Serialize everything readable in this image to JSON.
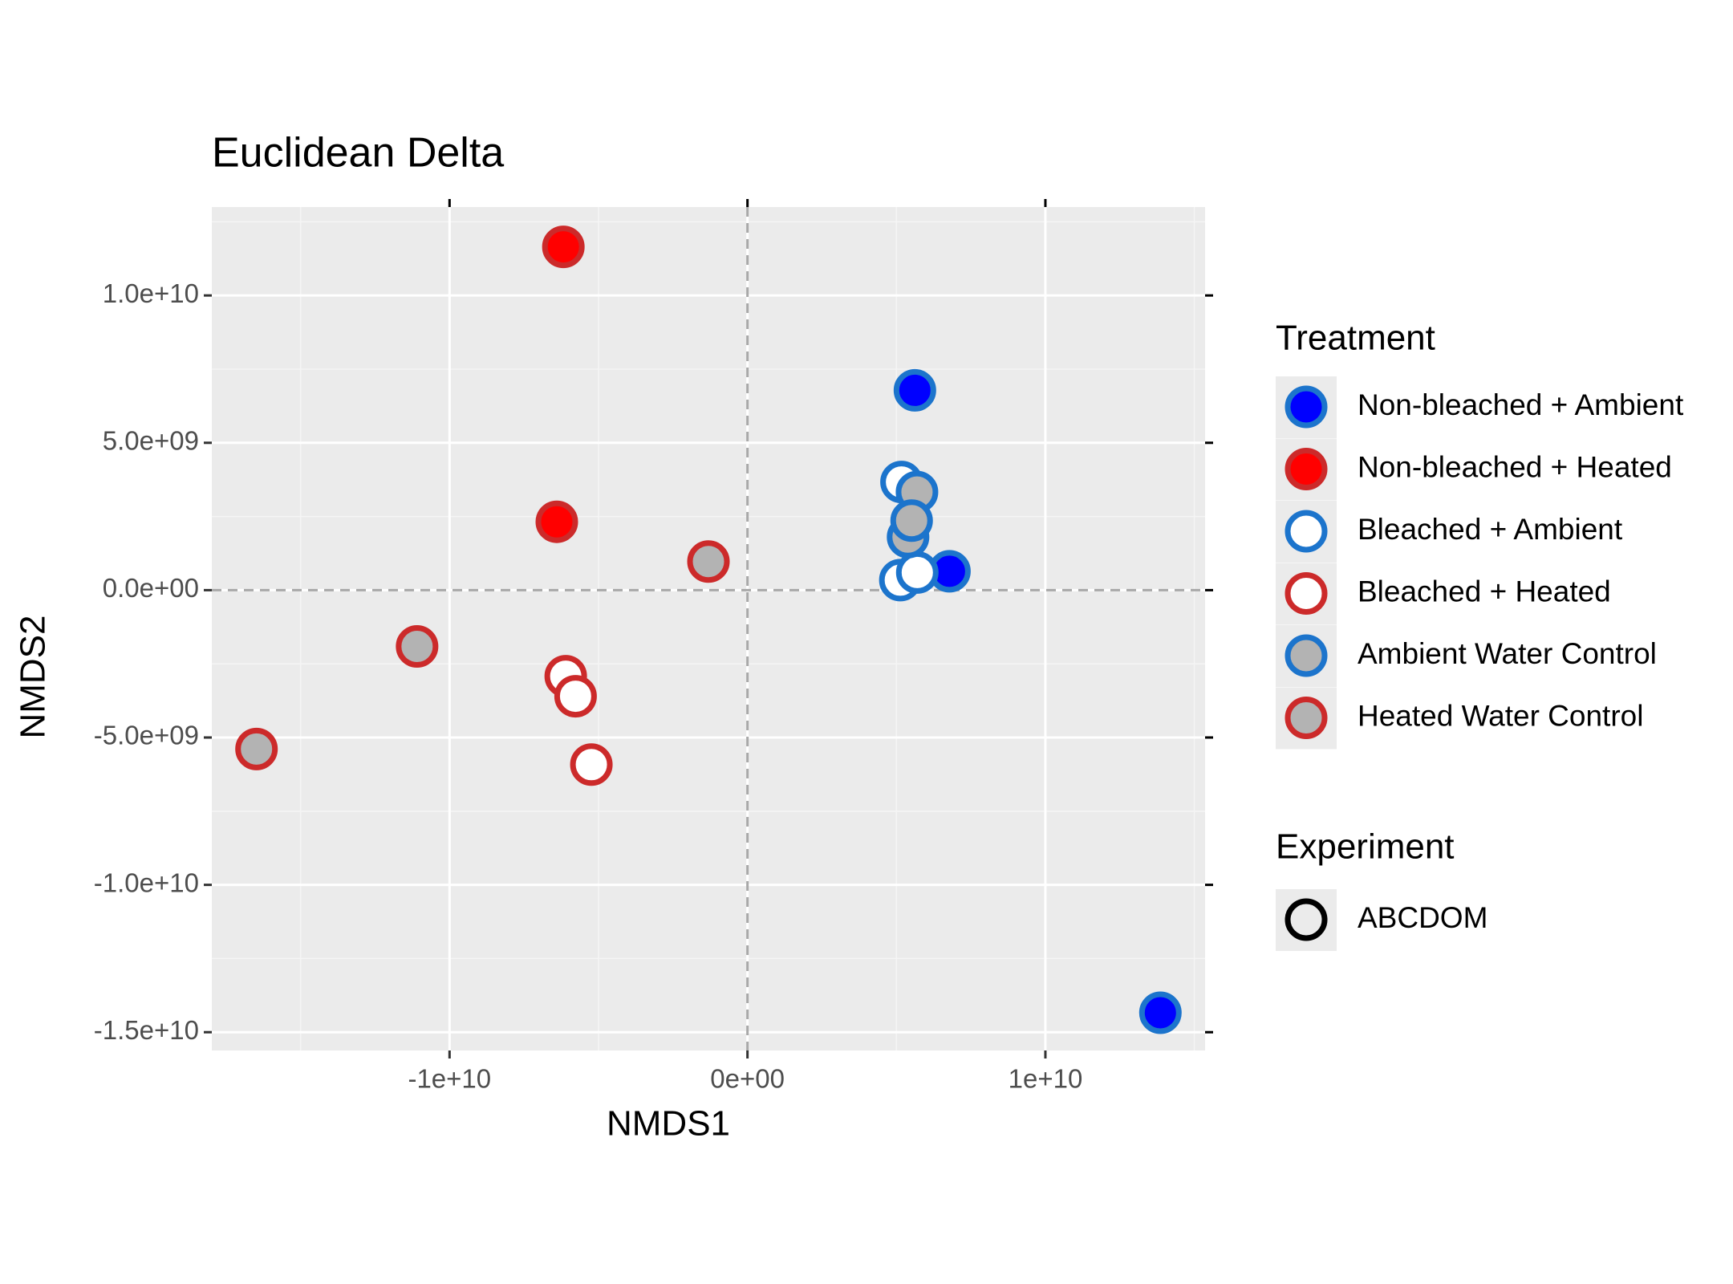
{
  "chart_data": {
    "type": "scatter",
    "title": "Euclidean Delta",
    "x_label": "NMDS1",
    "y_label": "NMDS2",
    "xlim": [
      -17980000000.0,
      15360000000.0
    ],
    "ylim": [
      -15620000000.0,
      13000000000.0
    ],
    "xticks": [
      {
        "value": -10000000000.0,
        "label": "-1e+10"
      },
      {
        "value": 0,
        "label": "0e+00"
      },
      {
        "value": 10000000000.0,
        "label": "1e+10"
      }
    ],
    "yticks": [
      {
        "value": -15000000000.0,
        "label": "-1.5e+10"
      },
      {
        "value": -10000000000.0,
        "label": "-1.0e+10"
      },
      {
        "value": -5000000000.0,
        "label": "-5.0e+09"
      },
      {
        "value": 0,
        "label": "0.0e+00"
      },
      {
        "value": 5000000000.0,
        "label": "5.0e+09"
      },
      {
        "value": 10000000000.0,
        "label": "1.0e+10"
      }
    ],
    "grid": true,
    "hline": 0,
    "vline": 0,
    "legend_title": "Treatment",
    "series": [
      {
        "name": "Non-bleached + Ambient",
        "color": "#0000ff",
        "edgecolor": "#1c74cc",
        "x": [
          5620000000.0,
          6780000000.0,
          13860000000.0
        ],
        "y": [
          6780000000.0,
          640000000.0,
          -14340000000.0
        ]
      },
      {
        "name": "Non-bleached + Heated",
        "color": "#ff0000",
        "edgecolor": "#cc2a2a",
        "x": [
          -6180000000.0,
          -6400000000.0
        ],
        "y": [
          11650000000.0,
          2320000000.0
        ]
      },
      {
        "name": "Bleached + Ambient",
        "color": "#ffffff",
        "edgecolor": "#1c74cc",
        "x": [
          5170000000.0,
          5130000000.0,
          5700000000.0
        ],
        "y": [
          3670000000.0,
          340000000.0,
          600000000.0
        ]
      },
      {
        "name": "Bleached + Heated",
        "color": "#ffffff",
        "edgecolor": "#cc2a2a",
        "x": [
          -6100000000.0,
          -5770000000.0,
          -5240000000.0
        ],
        "y": [
          -2920000000.0,
          -3600000000.0,
          -5920000000.0
        ]
      },
      {
        "name": "Ambient Water Control",
        "color": "#b3b3b3",
        "edgecolor": "#1c74cc",
        "x": [
          5690000000.0,
          5390000000.0,
          5510000000.0
        ],
        "y": [
          3330000000.0,
          1800000000.0,
          2360000000.0
        ]
      },
      {
        "name": "Heated Water Control",
        "color": "#b3b3b3",
        "edgecolor": "#cc2a2a",
        "x": [
          -1310000000.0,
          -11090000000.0,
          -16480000000.0
        ],
        "y": [
          970000000.0,
          -1910000000.0,
          -5390000000.0
        ]
      }
    ],
    "legend2": {
      "title": "Experiment",
      "entries": [
        "ABCDOM"
      ]
    }
  }
}
